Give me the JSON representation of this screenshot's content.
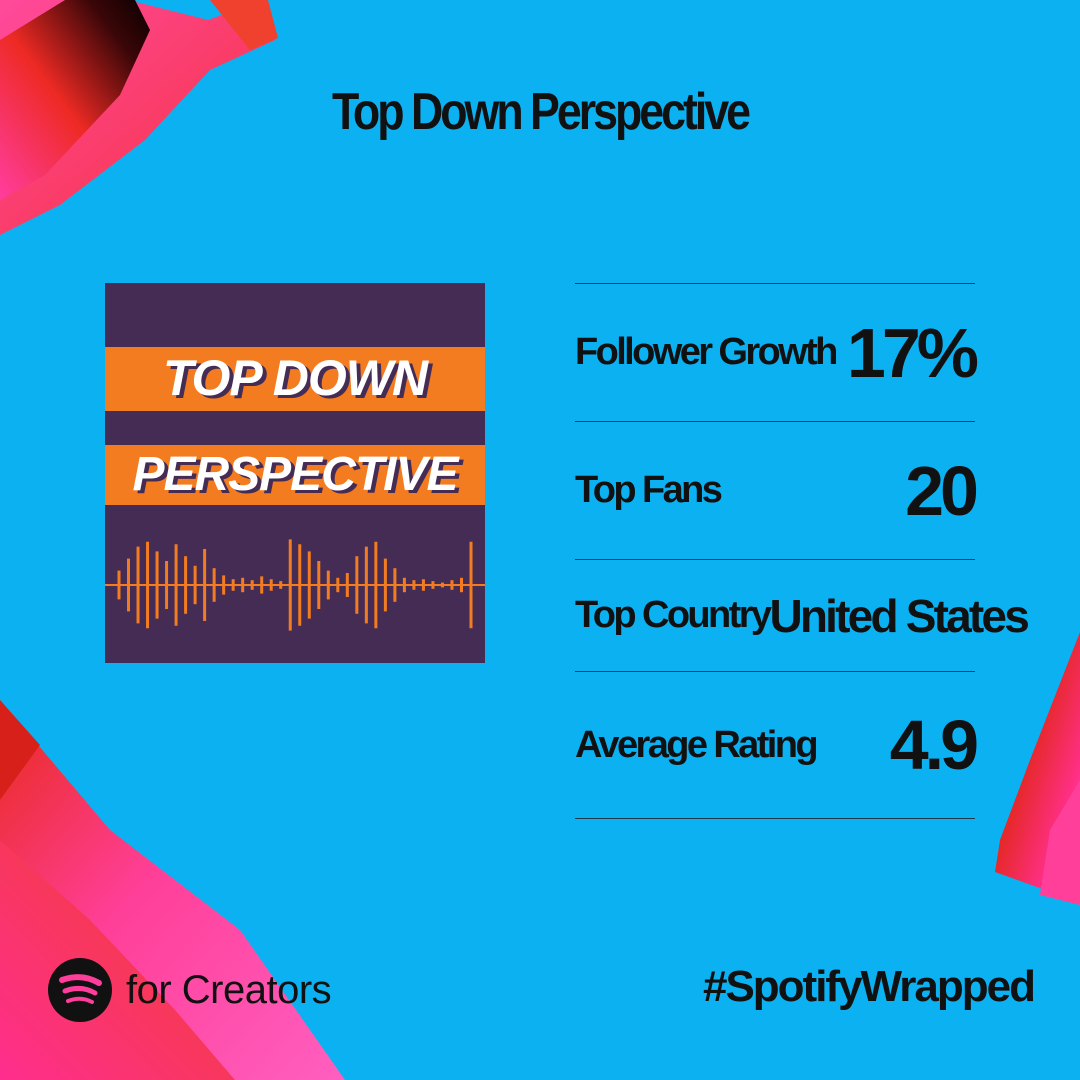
{
  "page": {
    "title": "Top Down Perspective"
  },
  "cover": {
    "line1": "TOP DOWN",
    "line2": "PERSPECTIVE"
  },
  "stats": [
    {
      "label": "Follower Growth",
      "value": "17%"
    },
    {
      "label": "Top Fans",
      "value": "20"
    },
    {
      "label": "Top Country",
      "value": "United States"
    },
    {
      "label": "Average Rating",
      "value": "4.9"
    }
  ],
  "footer": {
    "brand": "for Creators",
    "hashtag": "#SpotifyWrapped",
    "logo_icon": "spotify-logo-icon"
  },
  "colors": {
    "background": "#0cb1f2",
    "text": "#111111",
    "cover_purple": "#452c55",
    "cover_orange": "#f47c20",
    "accent_pink": "#ff3d9a",
    "accent_red": "#e8261e"
  }
}
